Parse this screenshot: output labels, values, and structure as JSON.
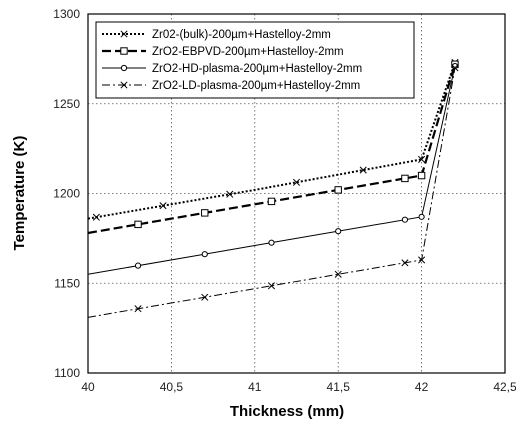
{
  "chart_data": {
    "type": "line",
    "xlabel": "Thickness (mm)",
    "ylabel": "Temperature (K)",
    "xlim": [
      40,
      42.5
    ],
    "ylim": [
      1100,
      1300
    ],
    "x_ticks": [
      "40",
      "40,5",
      "41",
      "41,5",
      "42",
      "42,5"
    ],
    "y_ticks": [
      "1100",
      "1150",
      "1200",
      "1250",
      "1300"
    ],
    "grid": "dotted",
    "legend_position": "top-left",
    "series": [
      {
        "name": "Zr02-(bulk)-200µm+Hastelloy-2mm",
        "style": "dotted",
        "marker": "x",
        "color": "#000000",
        "x": [
          40,
          41,
          42,
          42.2
        ],
        "y": [
          1186,
          1202,
          1219,
          1273
        ]
      },
      {
        "name": "ZrO2-EBPVD-200µm+Hastelloy-2mm",
        "style": "dashed",
        "marker": "square",
        "color": "#000000",
        "x": [
          40,
          41,
          42,
          42.2
        ],
        "y": [
          1178,
          1194,
          1210,
          1272
        ]
      },
      {
        "name": "ZrO2-HD-plasma-200µm+Hastelloy-2mm",
        "style": "solid",
        "marker": "circle",
        "color": "#000000",
        "x": [
          40,
          41,
          42,
          42.2
        ],
        "y": [
          1155,
          1171,
          1187,
          1271
        ]
      },
      {
        "name": "ZrO2-LD-plasma-200µm+Hastelloy-2mm",
        "style": "dashdot",
        "marker": "x",
        "color": "#000000",
        "x": [
          40,
          41,
          42,
          42.2
        ],
        "y": [
          1131,
          1147,
          1163,
          1270
        ]
      }
    ]
  }
}
